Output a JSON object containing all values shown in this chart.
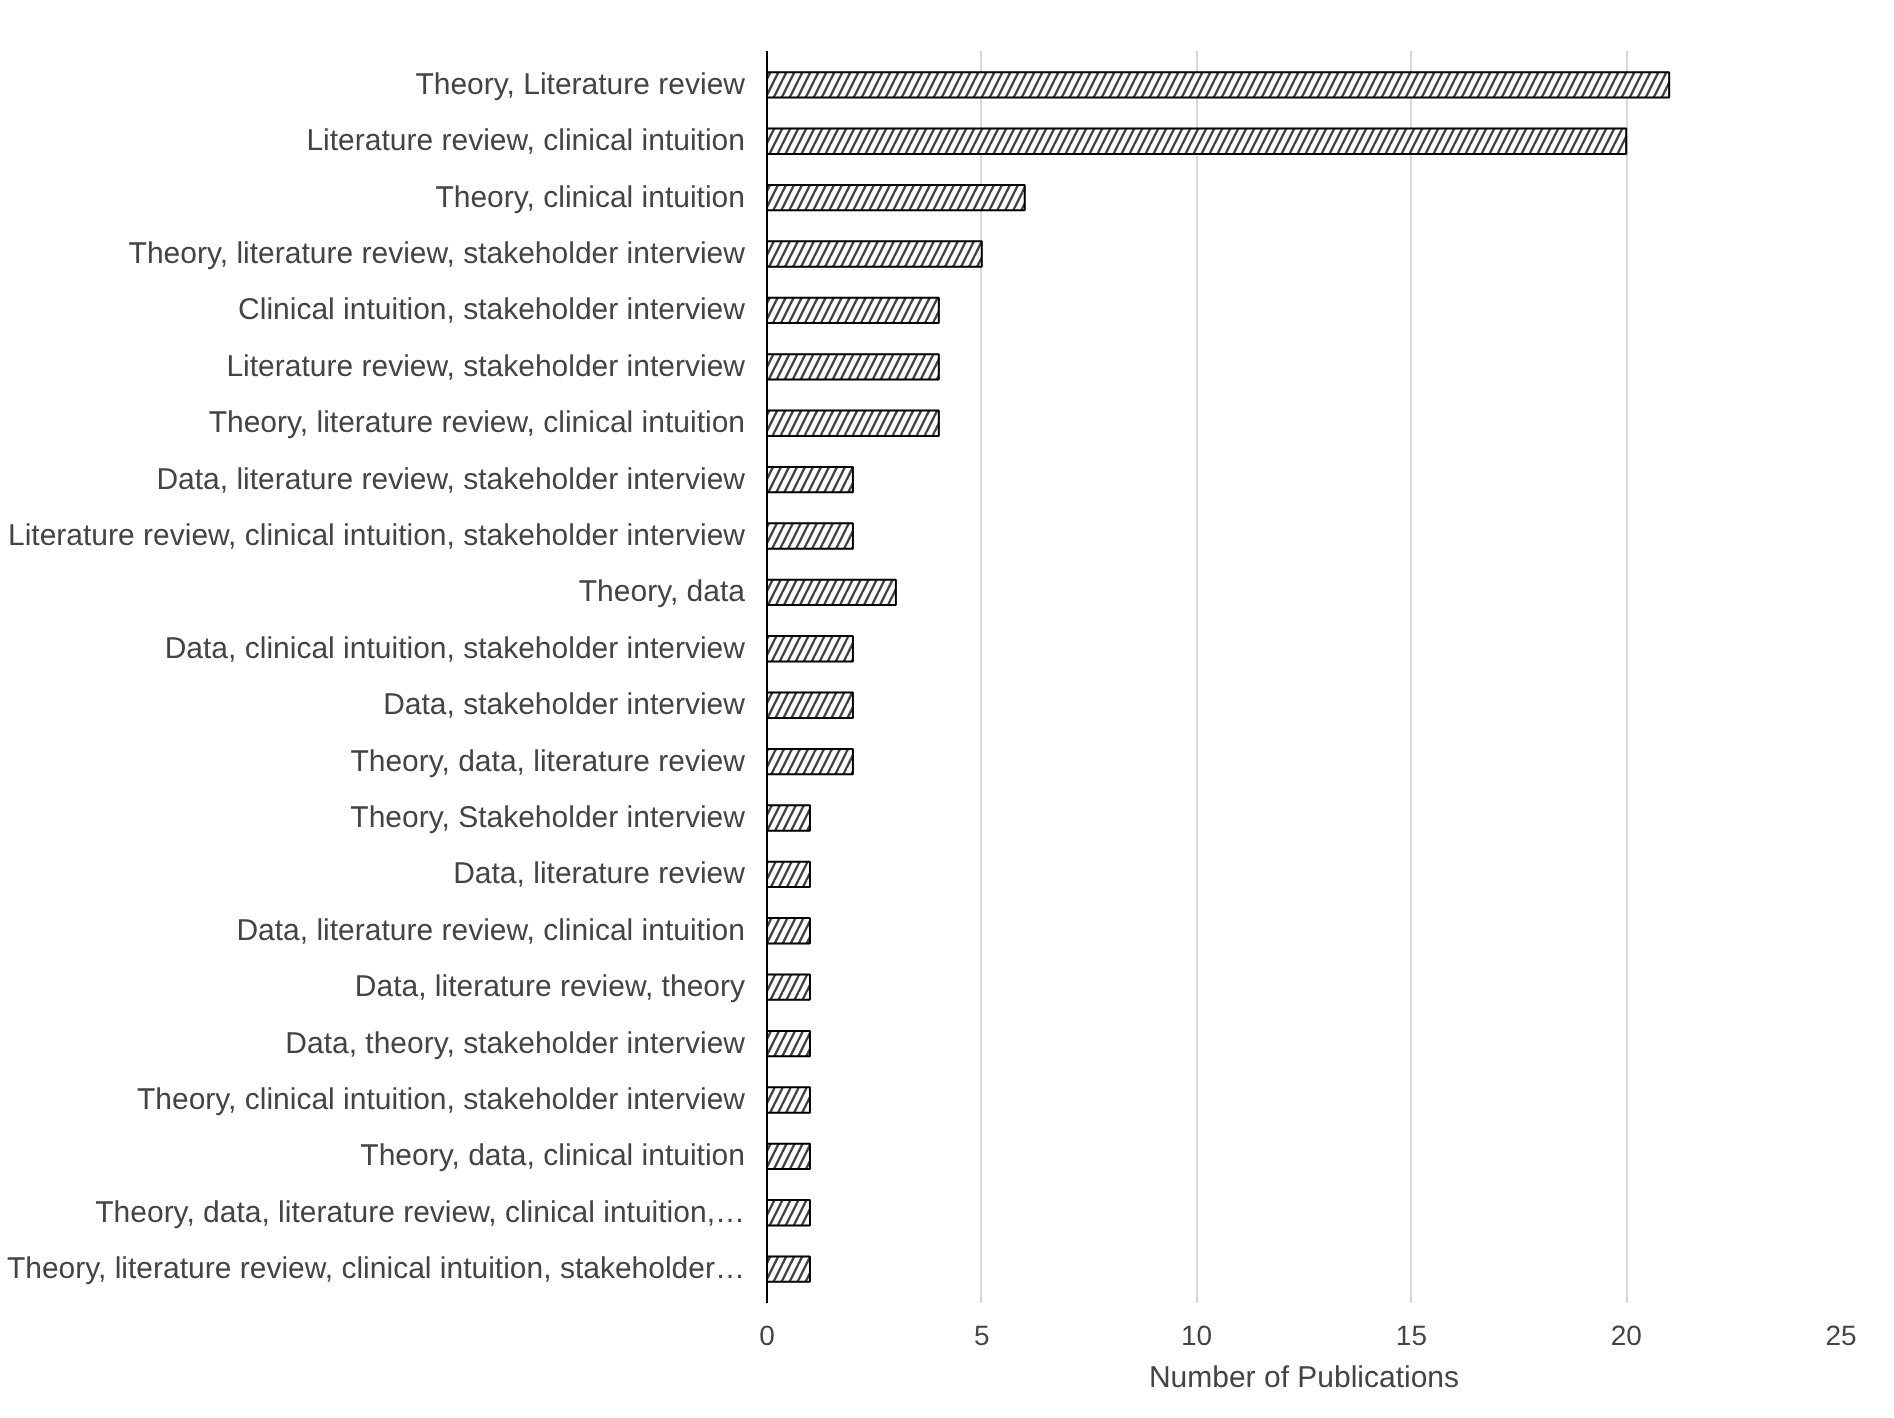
{
  "chart_data": {
    "type": "bar",
    "orientation": "horizontal",
    "xlabel": "Number of Publications",
    "categories": [
      "Theory, Literature review",
      "Literature review, clinical intuition",
      "Theory, clinical intuition",
      "Theory, literature review, stakeholder interview",
      "Clinical intuition, stakeholder interview",
      "Literature review, stakeholder interview",
      "Theory, literature review, clinical intuition",
      "Data, literature review, stakeholder interview",
      "Literature review, clinical intuition, stakeholder interview",
      "Theory, data",
      "Data, clinical intuition, stakeholder interview",
      "Data, stakeholder interview",
      "Theory, data, literature review",
      "Theory, Stakeholder interview",
      "Data, literature review",
      "Data, literature review, clinical intuition",
      "Data, literature review, theory",
      "Data, theory, stakeholder interview",
      "Theory, clinical intuition, stakeholder interview",
      "Theory, data, clinical intuition",
      "Theory, data, literature review, clinical intuition,…",
      "Theory, literature review, clinical intuition, stakeholder…"
    ],
    "values": [
      21,
      20,
      6,
      5,
      4,
      4,
      4,
      2,
      2,
      3,
      2,
      2,
      2,
      1,
      1,
      1,
      1,
      1,
      1,
      1,
      1,
      1
    ],
    "color": "#ffffff",
    "xlim": [
      0,
      25
    ],
    "xticks": [
      0,
      5,
      10,
      15,
      20,
      25
    ],
    "grid": "x"
  }
}
